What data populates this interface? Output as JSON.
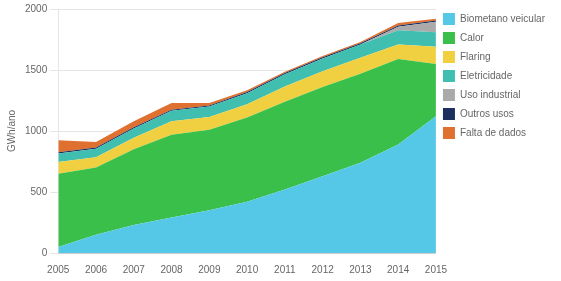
{
  "chart_data": {
    "type": "area",
    "stacked": true,
    "x": [
      2005,
      2006,
      2007,
      2008,
      2009,
      2010,
      2011,
      2012,
      2013,
      2014,
      2015
    ],
    "series": [
      {
        "name": "Biometano veicular",
        "color": "#55c8e8",
        "values": [
          50,
          150,
          230,
          290,
          350,
          420,
          520,
          630,
          740,
          890,
          1120
        ]
      },
      {
        "name": "Calor",
        "color": "#3abf4a",
        "values": [
          600,
          550,
          620,
          680,
          660,
          690,
          720,
          730,
          730,
          700,
          430
        ]
      },
      {
        "name": "Flaring",
        "color": "#f0d040",
        "values": [
          95,
          85,
          95,
          110,
          105,
          110,
          125,
          130,
          130,
          120,
          140
        ]
      },
      {
        "name": "Eletricidade",
        "color": "#40bfb0",
        "values": [
          70,
          70,
          75,
          85,
          85,
          90,
          100,
          105,
          110,
          115,
          120
        ]
      },
      {
        "name": "Uso industrial",
        "color": "#aaaaaa",
        "values": [
          0,
          0,
          0,
          0,
          0,
          0,
          0,
          0,
          0,
          30,
          85
        ]
      },
      {
        "name": "Outros usos",
        "color": "#1c3060",
        "values": [
          10,
          10,
          10,
          10,
          10,
          10,
          10,
          10,
          10,
          10,
          10
        ]
      },
      {
        "name": "Falta de dados",
        "color": "#e07030",
        "values": [
          100,
          45,
          50,
          55,
          20,
          15,
          10,
          10,
          10,
          20,
          15
        ]
      }
    ],
    "xlim": [
      2005,
      2015
    ],
    "xticks": [
      2005,
      2006,
      2007,
      2008,
      2009,
      2010,
      2011,
      2012,
      2013,
      2014,
      2015
    ],
    "ylabel": "GWh/ano",
    "ylim": [
      0,
      2000
    ],
    "yticks": [
      0,
      500,
      1000,
      1500,
      2000
    ],
    "grid": "y",
    "legend": "right"
  }
}
